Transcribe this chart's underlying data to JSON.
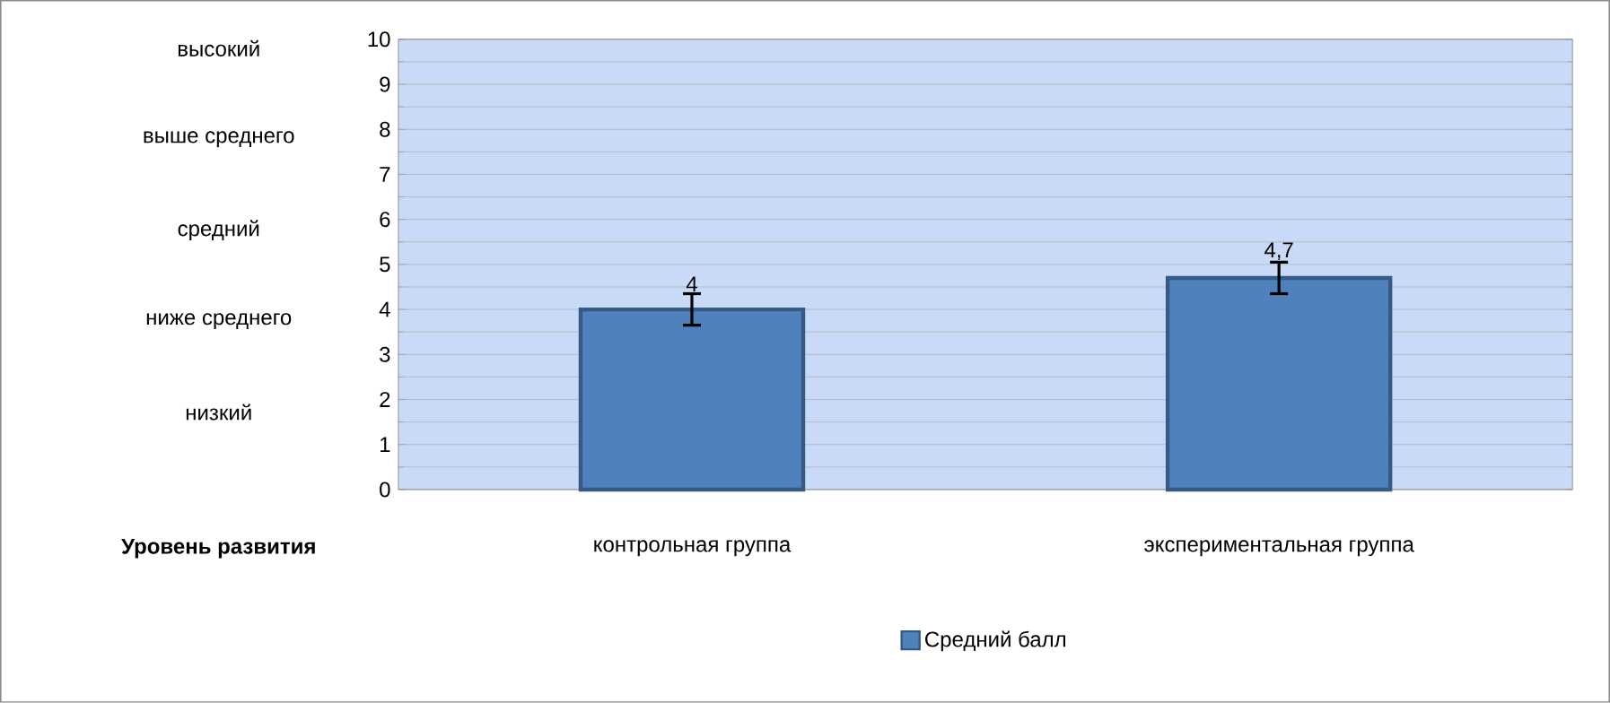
{
  "chart_data": {
    "type": "bar",
    "categories": [
      "контрольная группа",
      "экспериментальная группа"
    ],
    "series": [
      {
        "name": "Средний балл",
        "color": "#4f81bd",
        "values": [
          4,
          4.7
        ],
        "errors": [
          0.35,
          0.35
        ],
        "value_labels": [
          "4",
          "4,7"
        ]
      }
    ],
    "ylim": [
      0,
      10
    ],
    "yticks": [
      0,
      1,
      2,
      3,
      4,
      5,
      6,
      7,
      8,
      9,
      10
    ],
    "grid": "y",
    "legend": "bottom",
    "annotations": [
      "высокий",
      "выше среднего",
      "средний",
      "ниже среднего",
      "низкий",
      "Уровень развития"
    ]
  }
}
